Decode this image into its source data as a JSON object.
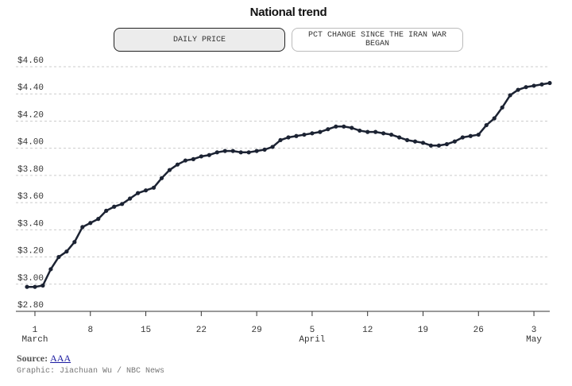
{
  "chart_data": {
    "type": "line",
    "title": "National trend",
    "buttons": [
      "DAILY PRICE",
      "PCT CHANGE SINCE THE IRAN WAR BEGAN"
    ],
    "x": [
      "Feb 28",
      "Mar 1",
      "Mar 2",
      "Mar 3",
      "Mar 4",
      "Mar 5",
      "Mar 6",
      "Mar 7",
      "Mar 8",
      "Mar 9",
      "Mar 10",
      "Mar 11",
      "Mar 12",
      "Mar 13",
      "Mar 14",
      "Mar 15",
      "Mar 16",
      "Mar 17",
      "Mar 18",
      "Mar 19",
      "Mar 20",
      "Mar 21",
      "Mar 22",
      "Mar 23",
      "Mar 24",
      "Mar 25",
      "Mar 26",
      "Mar 27",
      "Mar 28",
      "Mar 29",
      "Mar 30",
      "Mar 31",
      "Apr 1",
      "Apr 2",
      "Apr 3",
      "Apr 4",
      "Apr 5",
      "Apr 6",
      "Apr 7",
      "Apr 8",
      "Apr 9",
      "Apr 10",
      "Apr 11",
      "Apr 12",
      "Apr 13",
      "Apr 14",
      "Apr 15",
      "Apr 16",
      "Apr 17",
      "Apr 18",
      "Apr 19",
      "Apr 20",
      "Apr 21",
      "Apr 22",
      "Apr 23",
      "Apr 24",
      "Apr 25",
      "Apr 26",
      "Apr 27",
      "Apr 28",
      "Apr 29",
      "Apr 30",
      "May 1",
      "May 2",
      "May 3",
      "May 4",
      "May 5"
    ],
    "values": [
      2.98,
      2.98,
      2.99,
      3.11,
      3.2,
      3.24,
      3.31,
      3.42,
      3.45,
      3.48,
      3.54,
      3.57,
      3.59,
      3.63,
      3.67,
      3.69,
      3.71,
      3.78,
      3.84,
      3.88,
      3.91,
      3.92,
      3.94,
      3.95,
      3.97,
      3.98,
      3.98,
      3.97,
      3.97,
      3.98,
      3.99,
      4.01,
      4.06,
      4.08,
      4.09,
      4.1,
      4.11,
      4.12,
      4.14,
      4.16,
      4.16,
      4.15,
      4.13,
      4.12,
      4.12,
      4.11,
      4.1,
      4.08,
      4.06,
      4.05,
      4.04,
      4.02,
      4.02,
      4.03,
      4.05,
      4.08,
      4.09,
      4.1,
      4.17,
      4.22,
      4.3,
      4.39,
      4.43,
      4.45,
      4.46,
      4.47,
      4.48
    ],
    "color": "#1c2333",
    "ylim": [
      2.8,
      4.6
    ],
    "yticks": [
      {
        "value": 2.8,
        "label": "$2.80"
      },
      {
        "value": 3.0,
        "label": "$3.00"
      },
      {
        "value": 3.2,
        "label": "$3.20"
      },
      {
        "value": 3.4,
        "label": "$3.40"
      },
      {
        "value": 3.6,
        "label": "$3.60"
      },
      {
        "value": 3.8,
        "label": "$3.80"
      },
      {
        "value": 4.0,
        "label": "$4.00"
      },
      {
        "value": 4.2,
        "label": "$4.20"
      },
      {
        "value": 4.4,
        "label": "$4.40"
      },
      {
        "value": 4.6,
        "label": "$4.60"
      }
    ],
    "xticks": [
      {
        "value": "Mar 1",
        "label": "1",
        "month": "March"
      },
      {
        "value": "Mar 8",
        "label": "8"
      },
      {
        "value": "Mar 15",
        "label": "15"
      },
      {
        "value": "Mar 22",
        "label": "22"
      },
      {
        "value": "Mar 29",
        "label": "29"
      },
      {
        "value": "Apr 5",
        "label": "5",
        "month": "April"
      },
      {
        "value": "Apr 12",
        "label": "12"
      },
      {
        "value": "Apr 19",
        "label": "19"
      },
      {
        "value": "Apr 26",
        "label": "26"
      },
      {
        "value": "May 3",
        "label": "3",
        "month": "May"
      }
    ],
    "grid": true,
    "source_label": "Source:",
    "source": "AAA",
    "credit": "Graphic: Jiachuan Wu / NBC News"
  }
}
